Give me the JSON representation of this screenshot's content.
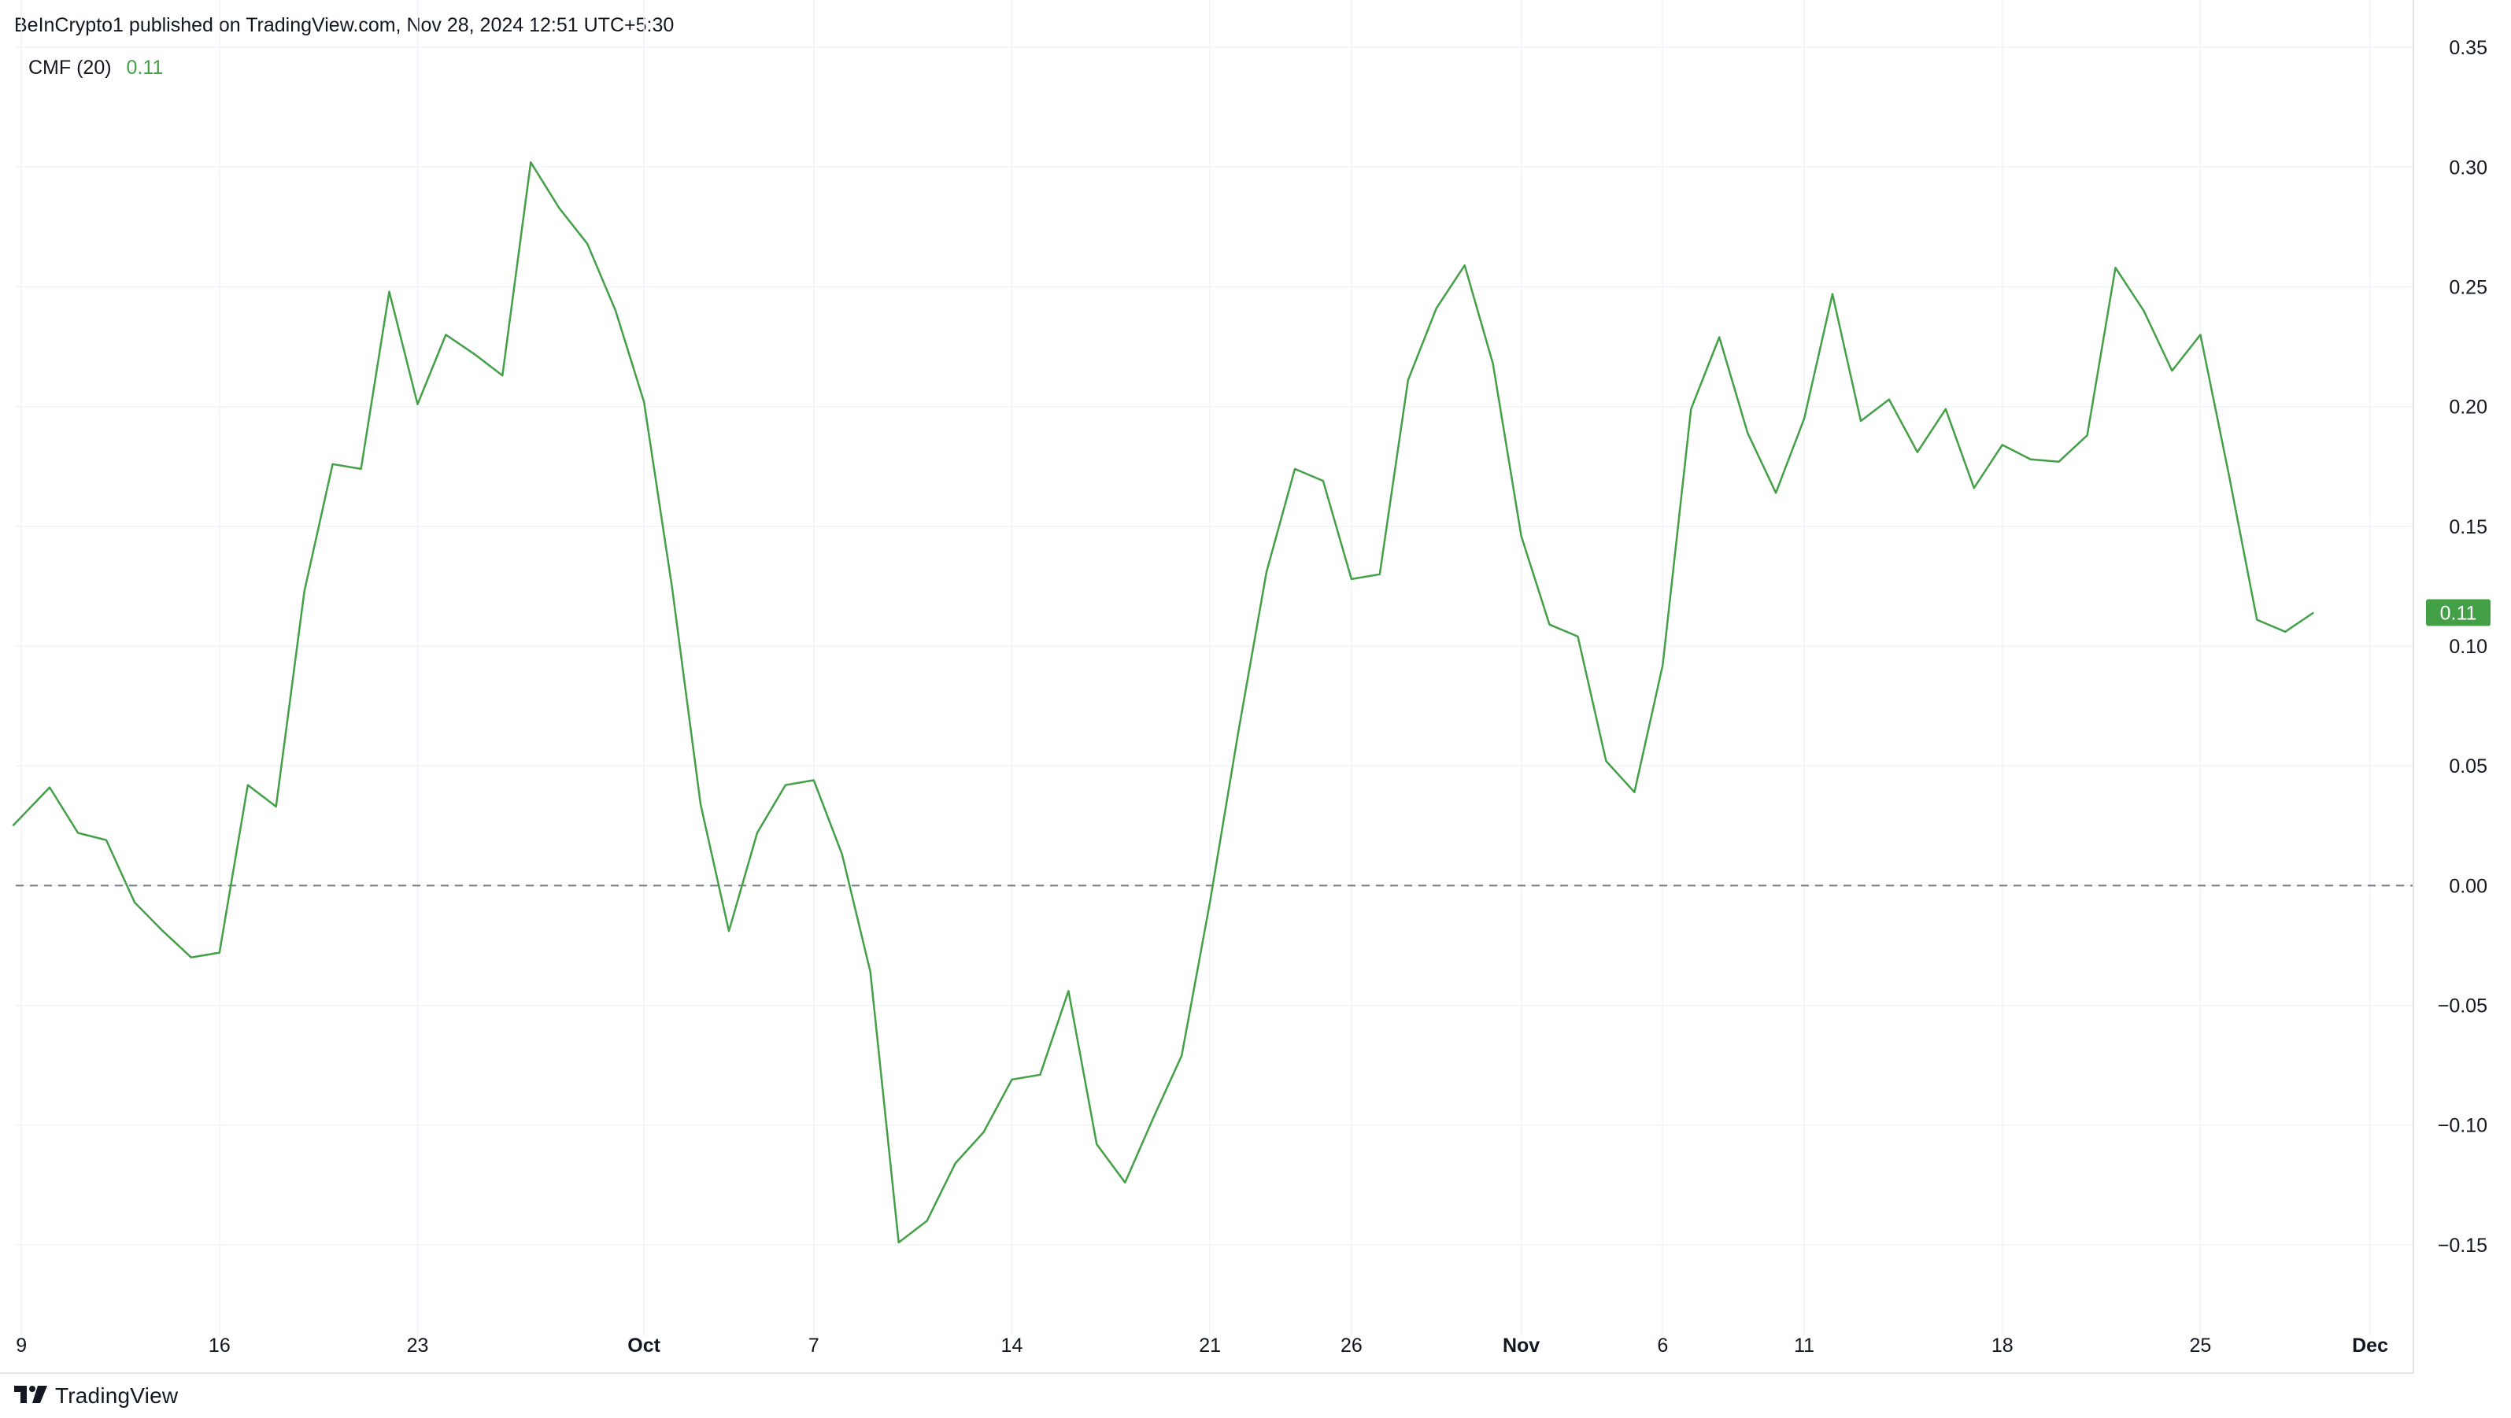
{
  "header": {
    "published_text": "BeInCrypto1 published on TradingView.com, Nov 28, 2024 12:51 UTC+5:30"
  },
  "legend": {
    "indicator_name": "CMF (20)",
    "indicator_value": "0.11"
  },
  "footer": {
    "brand": "TradingView",
    "brand_icon": "tradingview-logo-icon"
  },
  "colors": {
    "line": "#43a047",
    "badge": "#43a047",
    "grid": "#f0f3fa",
    "zero_line": "#787b86",
    "text": "#131722"
  },
  "chart_data": {
    "type": "line",
    "title": "",
    "xlabel": "",
    "ylabel": "",
    "ylim": [
      -0.175,
      0.355
    ],
    "y_ticks": [
      "0.35",
      "0.30",
      "0.25",
      "0.20",
      "0.15",
      "0.10",
      "0.05",
      "0.00",
      "−0.05",
      "−0.10",
      "−0.15"
    ],
    "y_tick_values": [
      0.35,
      0.3,
      0.25,
      0.2,
      0.15,
      0.1,
      0.05,
      0.0,
      -0.05,
      -0.1,
      -0.15
    ],
    "x_ticks": [
      {
        "label": "9",
        "index": 0,
        "bold": false
      },
      {
        "label": "16",
        "index": 7,
        "bold": false
      },
      {
        "label": "23",
        "index": 14,
        "bold": false
      },
      {
        "label": "Oct",
        "index": 22,
        "bold": true
      },
      {
        "label": "7",
        "index": 28,
        "bold": false
      },
      {
        "label": "14",
        "index": 35,
        "bold": false
      },
      {
        "label": "21",
        "index": 42,
        "bold": false
      },
      {
        "label": "26",
        "index": 47,
        "bold": false
      },
      {
        "label": "Nov",
        "index": 53,
        "bold": true
      },
      {
        "label": "6",
        "index": 58,
        "bold": false
      },
      {
        "label": "11",
        "index": 63,
        "bold": false
      },
      {
        "label": "18",
        "index": 70,
        "bold": false
      },
      {
        "label": "25",
        "index": 77,
        "bold": false
      },
      {
        "label": "Dec",
        "index": 83,
        "bold": true
      }
    ],
    "x_range": [
      -0.2,
      84.5
    ],
    "zero_line": 0,
    "grid": true,
    "last_value_label": "0.11",
    "series": [
      {
        "values": [
          0.025,
          0.041,
          0.022,
          0.019,
          -0.007,
          -0.019,
          -0.03,
          -0.028,
          0.042,
          0.033,
          0.123,
          0.176,
          0.174,
          0.248,
          0.201,
          0.23,
          0.222,
          0.213,
          0.302,
          0.283,
          0.268,
          0.24,
          0.202,
          0.124,
          0.034,
          -0.019,
          0.022,
          0.042,
          0.044,
          0.013,
          -0.036,
          -0.149,
          -0.14,
          -0.116,
          -0.103,
          -0.081,
          -0.079,
          -0.044,
          -0.108,
          -0.124,
          -0.097,
          -0.071,
          -0.007,
          0.064,
          0.131,
          0.174,
          0.169,
          0.128,
          0.13,
          0.211,
          0.241,
          0.259,
          0.218,
          0.146,
          0.109,
          0.104,
          0.052,
          0.039,
          0.092,
          0.199,
          0.229,
          0.189,
          0.164,
          0.195,
          0.247,
          0.194,
          0.203,
          0.181,
          0.199,
          0.166,
          0.184,
          0.178,
          0.177,
          0.188,
          0.258,
          0.24,
          0.215,
          0.23,
          0.172,
          0.111,
          0.106,
          0.114
        ],
        "x_start_index": -0.3
      }
    ]
  }
}
